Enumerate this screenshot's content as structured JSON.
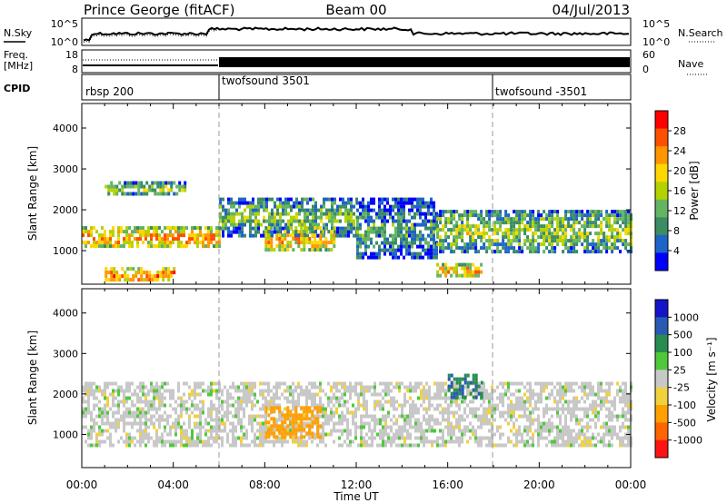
{
  "header": {
    "station": "Prince George (fitACF)",
    "beam": "Beam 00",
    "date": "04/Jul/2013"
  },
  "noise_panel": {
    "left_label": "N.Sky",
    "left_ticks": [
      "10^5",
      "10^0"
    ],
    "right_ticks": [
      "10^5",
      "10^0"
    ],
    "right_label": "N.Search"
  },
  "freq_panel": {
    "left_label_1": "Freq.",
    "left_label_2": "[MHz]",
    "left_ticks": [
      "18",
      "8"
    ],
    "right_ticks": [
      "60",
      "0"
    ],
    "right_label": "Nave"
  },
  "cpid_panel": {
    "label": "CPID",
    "segments": [
      {
        "name": "rbsp 200",
        "start_hour": 0
      },
      {
        "name": "twofsound 3501",
        "start_hour": 6
      },
      {
        "name": "twofsound -3501",
        "start_hour": 18
      }
    ]
  },
  "colors": {
    "power_scale": [
      "#0000ff",
      "#1e64c8",
      "#3c8c64",
      "#64b464",
      "#b4d200",
      "#ffd700",
      "#ff9600",
      "#ff5000",
      "#ff0000"
    ],
    "velocity_scale": [
      "#1414c8",
      "#285ab4",
      "#288c50",
      "#50c83c",
      "#c8c8c8",
      "#f0d23c",
      "#ffa000",
      "#ff6400",
      "#ff1414"
    ]
  },
  "chart_data": [
    {
      "type": "heatmap",
      "ylabel": "Slant Range [km]",
      "ylim": [
        180,
        4600
      ],
      "yticks": [
        "1000",
        "2000",
        "3000",
        "4000"
      ],
      "xlim_hours": [
        0,
        24
      ],
      "colorbar": {
        "label": "Power [dB]",
        "range": [
          0,
          32
        ],
        "tick_labels": [
          "4",
          "8",
          "12",
          "16",
          "20",
          "24",
          "28"
        ]
      },
      "summary_bands": [
        {
          "t_start_h": 0.0,
          "t_end_h": 6.0,
          "range_km": [
            1100,
            1600
          ],
          "power_db": 24
        },
        {
          "t_start_h": 1.0,
          "t_end_h": 4.0,
          "range_km": [
            300,
            600
          ],
          "power_db": 28
        },
        {
          "t_start_h": 1.0,
          "t_end_h": 4.5,
          "range_km": [
            2400,
            2700
          ],
          "power_db": 16
        },
        {
          "t_start_h": 6.0,
          "t_end_h": 12.0,
          "range_km": [
            1400,
            2300
          ],
          "power_db": 14
        },
        {
          "t_start_h": 8.0,
          "t_end_h": 11.0,
          "range_km": [
            1000,
            1600
          ],
          "power_db": 22
        },
        {
          "t_start_h": 12.0,
          "t_end_h": 15.5,
          "range_km": [
            800,
            2300
          ],
          "power_db": 10
        },
        {
          "t_start_h": 15.5,
          "t_end_h": 24.0,
          "range_km": [
            1000,
            2000
          ],
          "power_db": 16
        },
        {
          "t_start_h": 15.5,
          "t_end_h": 17.5,
          "range_km": [
            400,
            700
          ],
          "power_db": 24
        }
      ]
    },
    {
      "type": "heatmap",
      "ylabel": "Slant Range [km]",
      "xlabel": "Time UT",
      "ylim": [
        180,
        4600
      ],
      "yticks": [
        "1000",
        "2000",
        "3000",
        "4000"
      ],
      "xlim_hours": [
        0,
        24
      ],
      "xticks": [
        "00:00",
        "04:00",
        "08:00",
        "12:00",
        "16:00",
        "20:00",
        "00:00"
      ],
      "colorbar": {
        "label": "Velocity [m s⁻¹]",
        "tick_labels": [
          "1000",
          "500",
          "100",
          "25",
          "-25",
          "-100",
          "-500",
          "-1000"
        ]
      },
      "summary_bands": [
        {
          "t_start_h": 0.0,
          "t_end_h": 24.0,
          "range_km": [
            700,
            2300
          ],
          "velocity_ms": 0
        },
        {
          "t_start_h": 8.0,
          "t_end_h": 10.5,
          "range_km": [
            900,
            1700
          ],
          "velocity_ms": -200
        },
        {
          "t_start_h": 16.0,
          "t_end_h": 17.5,
          "range_km": [
            1900,
            2500
          ],
          "velocity_ms": 300
        }
      ]
    }
  ]
}
